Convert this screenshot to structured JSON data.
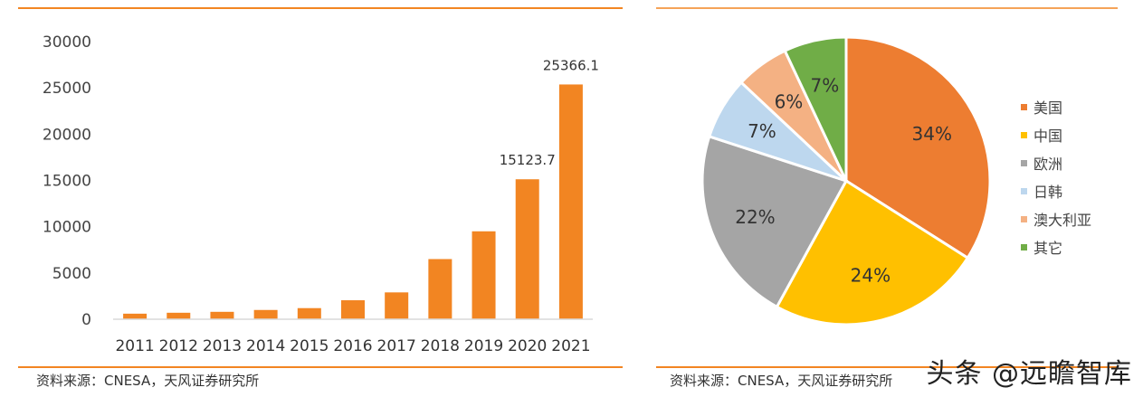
{
  "chart_data": [
    {
      "type": "bar",
      "categories": [
        "2011",
        "2012",
        "2013",
        "2014",
        "2015",
        "2016",
        "2017",
        "2018",
        "2019",
        "2020",
        "2021"
      ],
      "values": [
        600,
        700,
        800,
        1000,
        1200,
        2050,
        2900,
        6500,
        9500,
        15123.7,
        25366.1
      ],
      "data_labels": {
        "2020": "15123.7",
        "2021": "25366.1"
      },
      "ylim": [
        0,
        30000
      ],
      "yticks": [
        "0",
        "5000",
        "10000",
        "15000",
        "20000",
        "25000",
        "30000"
      ],
      "grid": false,
      "color": "#F28522",
      "source": "资料来源：CNESA，天风证券研究所"
    },
    {
      "type": "pie",
      "labels": [
        "美国",
        "中国",
        "欧洲",
        "日韩",
        "澳大利亚",
        "其它"
      ],
      "values": [
        34,
        24,
        22,
        7,
        6,
        7
      ],
      "value_labels": [
        "34%",
        "24%",
        "22%",
        "7%",
        "6%",
        "7%"
      ],
      "colors": [
        "#ED7D31",
        "#FFC000",
        "#A5A5A5",
        "#BDD7EE",
        "#F4B183",
        "#70AD47"
      ],
      "legend": "right",
      "source": "资料来源：CNESA，天风证券研究所"
    }
  ],
  "watermark": "头条 @远瞻智库",
  "accent": "#F28522"
}
